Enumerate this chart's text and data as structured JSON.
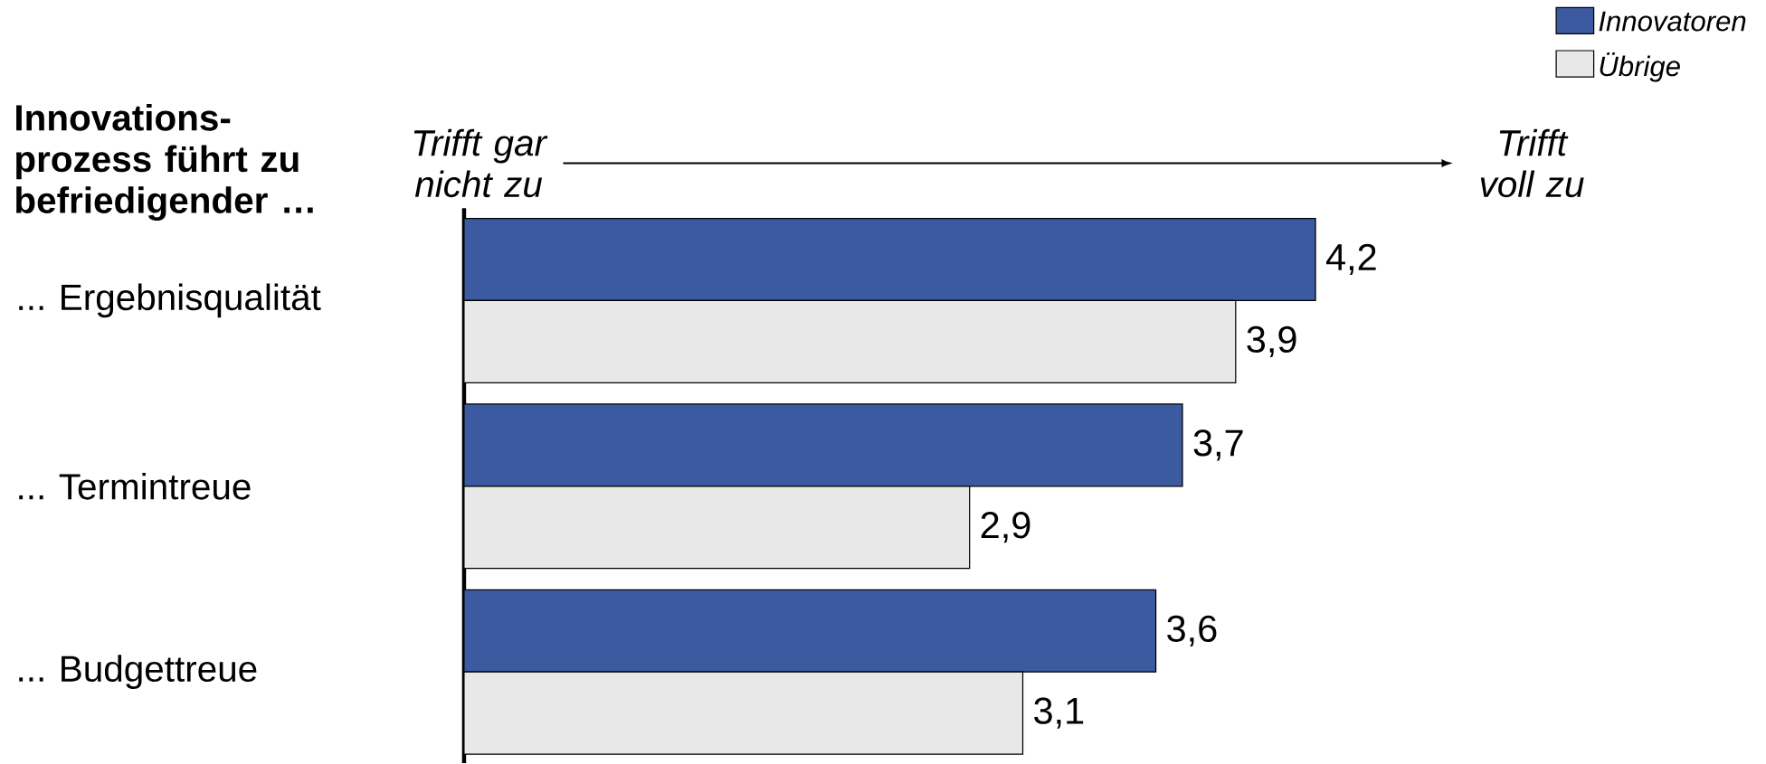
{
  "chart_data": {
    "type": "bar",
    "orientation": "horizontal",
    "title": "Innovations-prozess führt zu befriedigender …",
    "categories": [
      "... Ergebnisqualität",
      "... Termintreue",
      "... Budgettreue"
    ],
    "series": [
      {
        "name": "Innovatoren",
        "color": "#3c5aa0",
        "values": [
          4.2,
          3.7,
          3.6
        ],
        "value_labels": [
          "4,2",
          "3,7",
          "3,6"
        ]
      },
      {
        "name": "Übrige",
        "color": "#e8e8e8",
        "values": [
          3.9,
          2.9,
          3.1
        ],
        "value_labels": [
          "3,9",
          "2,9",
          "3,1"
        ]
      }
    ],
    "xlim": [
      1,
      4.2
    ],
    "annotations": [
      "Trifft gar nicht zu",
      "Trifft voll zu"
    ],
    "legend": "top right",
    "tick_labels": "y"
  }
}
